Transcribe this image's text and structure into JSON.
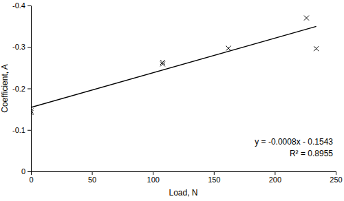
{
  "chart_data": {
    "type": "scatter",
    "x_label": "Load, N",
    "y_label": "Coefficient, A",
    "xlim": [
      0,
      250
    ],
    "xticks": [
      0,
      50,
      100,
      150,
      200,
      250
    ],
    "ylim": [
      0,
      -0.4
    ],
    "yticks": [
      0,
      -0.1,
      -0.2,
      -0.3,
      -0.4
    ],
    "grid": false,
    "series": [
      {
        "type": "scatter",
        "marker": "x",
        "color": "#000000",
        "x": [
          0,
          0,
          108,
          108,
          162,
          226,
          234
        ],
        "values": [
          -0.142,
          -0.146,
          -0.259,
          -0.263,
          -0.297,
          -0.37,
          -0.296
        ]
      },
      {
        "type": "line",
        "line_style": "solid",
        "color": "#000000",
        "x": [
          0,
          234
        ],
        "values": [
          -0.1543,
          -0.3495
        ]
      }
    ],
    "annotations": [
      {
        "text": "y = -0.0008x - 0.1543"
      },
      {
        "text": "R² = 0.8955"
      }
    ]
  }
}
